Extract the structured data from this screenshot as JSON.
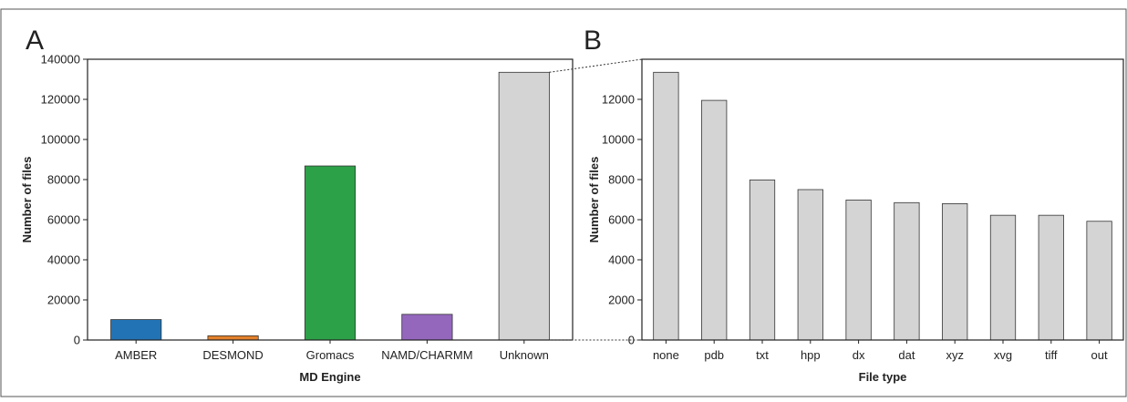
{
  "panels": [
    {
      "letter": "A"
    },
    {
      "letter": "B"
    }
  ],
  "chart_data": [
    {
      "type": "bar",
      "title": "",
      "xlabel": "MD Engine",
      "ylabel": "Number of files",
      "ylim": [
        0,
        140000
      ],
      "yticks": [
        0,
        20000,
        40000,
        60000,
        80000,
        100000,
        120000,
        140000
      ],
      "categories": [
        "AMBER",
        "DESMOND",
        "Gromacs",
        "NAMD/CHARMM",
        "Unknown"
      ],
      "values": [
        10200,
        2100,
        86800,
        12800,
        133500
      ],
      "colors": [
        "#2273b5",
        "#e3812b",
        "#2ca148",
        "#9467bd",
        "#d4d4d4"
      ],
      "grid": false
    },
    {
      "type": "bar",
      "title": "",
      "xlabel": "File type",
      "ylabel": "Number of files",
      "ylim": [
        0,
        14000
      ],
      "yticks": [
        0,
        2000,
        4000,
        6000,
        8000,
        10000,
        12000
      ],
      "categories": [
        "none",
        "pdb",
        "txt",
        "hpp",
        "dx",
        "dat",
        "xyz",
        "xvg",
        "tiff",
        "out"
      ],
      "values": [
        13350,
        11950,
        7980,
        7500,
        6980,
        6850,
        6800,
        6220,
        6220,
        5920
      ],
      "colors": [
        "#d4d4d4"
      ],
      "grid": false
    }
  ]
}
